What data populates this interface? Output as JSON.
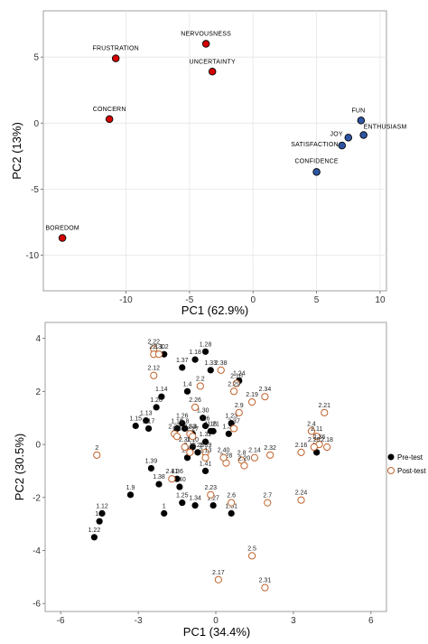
{
  "colors": {
    "emotion_negative": "#d40000",
    "emotion_positive": "#2e55a3",
    "pre": "#000000",
    "post_stroke": "#c0622a",
    "panel_border": "#888888",
    "grid": "#e6e6e6"
  },
  "chart_data": [
    {
      "type": "scatter",
      "xlabel": "PC1 (62.9%)",
      "ylabel": "PC2 (13%)",
      "xlim": [
        -16.5,
        10.5
      ],
      "ylim": [
        -12.7,
        8.5
      ],
      "xticks": [
        -10,
        -5,
        0,
        5,
        10
      ],
      "yticks": [
        -10,
        -5,
        0,
        5
      ],
      "grid": true,
      "points": [
        {
          "label": "NERVOUSNESS",
          "x": -3.7,
          "y": 6.0,
          "group": "negative"
        },
        {
          "label": "FRUSTRATION",
          "x": -10.8,
          "y": 4.9,
          "group": "negative"
        },
        {
          "label": "UNCERTAINTY",
          "x": -3.2,
          "y": 3.9,
          "group": "negative"
        },
        {
          "label": "CONCERN",
          "x": -11.3,
          "y": 0.3,
          "group": "negative"
        },
        {
          "label": "BOREDOM",
          "x": -15.0,
          "y": -8.7,
          "group": "negative"
        },
        {
          "label": "FUN",
          "x": 8.5,
          "y": 0.2,
          "group": "positive"
        },
        {
          "label": "ENTHUSIASM",
          "x": 8.7,
          "y": -0.9,
          "group": "positive"
        },
        {
          "label": "JOY",
          "x": 7.5,
          "y": -1.1,
          "group": "positive"
        },
        {
          "label": "SATISFACTION",
          "x": 7.0,
          "y": -1.7,
          "group": "positive"
        },
        {
          "label": "CONFIDENCE",
          "x": 5.0,
          "y": -3.7,
          "group": "positive"
        }
      ]
    },
    {
      "type": "scatter",
      "xlabel": "PC1 (34.4%)",
      "ylabel": "PC2 (30.5%)",
      "xlim": [
        -6.6,
        6.6
      ],
      "ylim": [
        -6.3,
        4.6
      ],
      "xticks": [
        -6,
        -3,
        0,
        3,
        6
      ],
      "yticks": [
        -6,
        -4,
        -2,
        0,
        2,
        4
      ],
      "grid": false,
      "legend": {
        "position": "right",
        "entries": [
          "Pre-test",
          "Post-test"
        ]
      },
      "series": [
        {
          "name": "Pre-test",
          "points": [
            {
              "label": "1.2",
              "x": -2.0,
              "y": 3.4
            },
            {
              "label": "1.28",
              "x": -0.4,
              "y": 3.5
            },
            {
              "label": "1.18",
              "x": -0.8,
              "y": 3.2
            },
            {
              "label": "1.37",
              "x": -1.3,
              "y": 2.9
            },
            {
              "label": "1.33",
              "x": -0.2,
              "y": 2.8
            },
            {
              "label": "1.24",
              "x": 0.9,
              "y": 2.4
            },
            {
              "label": "1.4",
              "x": -1.1,
              "y": 2.0
            },
            {
              "label": "1.14",
              "x": -2.1,
              "y": 1.8
            },
            {
              "label": "1.20",
              "x": -2.3,
              "y": 1.4
            },
            {
              "label": "1.15",
              "x": -3.1,
              "y": 0.7
            },
            {
              "label": "1.13",
              "x": -2.7,
              "y": 0.9
            },
            {
              "label": "1.17",
              "x": -2.6,
              "y": 0.6
            },
            {
              "label": "1.26",
              "x": -1.3,
              "y": 0.8
            },
            {
              "label": "1.19",
              "x": -1.5,
              "y": 0.6
            },
            {
              "label": "1.8",
              "x": -1.2,
              "y": 0.6
            },
            {
              "label": "1.3",
              "x": -0.9,
              "y": 0.4
            },
            {
              "label": "1.30",
              "x": -0.5,
              "y": 1.0
            },
            {
              "label": "1.6",
              "x": -0.4,
              "y": 0.7
            },
            {
              "label": "1.16",
              "x": -0.2,
              "y": 0.5
            },
            {
              "label": "1.32",
              "x": -0.4,
              "y": 0.1
            },
            {
              "label": "1.10",
              "x": -0.9,
              "y": -0.1
            },
            {
              "label": "1.29",
              "x": -0.7,
              "y": -0.3
            },
            {
              "label": "1.23",
              "x": 0.6,
              "y": 0.8
            },
            {
              "label": "1.35",
              "x": 0.5,
              "y": 0.4
            },
            {
              "label": "1.21",
              "x": -0.1,
              "y": 0.5
            },
            {
              "label": "1.11",
              "x": -1.1,
              "y": -0.5
            },
            {
              "label": "1.41",
              "x": -0.4,
              "y": -1.0
            },
            {
              "label": "1.39",
              "x": -2.5,
              "y": -0.9
            },
            {
              "label": "1.38",
              "x": -2.2,
              "y": -1.5
            },
            {
              "label": "1.36",
              "x": -1.5,
              "y": -1.3
            },
            {
              "label": "1.40",
              "x": -1.4,
              "y": -1.6
            },
            {
              "label": "1.9",
              "x": -3.3,
              "y": -1.9
            },
            {
              "label": "1.25",
              "x": -1.3,
              "y": -2.2
            },
            {
              "label": "1.34",
              "x": -0.8,
              "y": -2.3
            },
            {
              "label": "1.27",
              "x": -0.1,
              "y": -2.3
            },
            {
              "label": "1",
              "x": -2.0,
              "y": -2.6
            },
            {
              "label": "1.31",
              "x": 0.6,
              "y": -2.6
            },
            {
              "label": "1.12",
              "x": -4.4,
              "y": -2.6
            },
            {
              "label": "1.7",
              "x": -4.5,
              "y": -2.9
            },
            {
              "label": "1.22",
              "x": -4.7,
              "y": -3.5
            },
            {
              "label": "1.5",
              "x": 3.9,
              "y": -0.3
            }
          ]
        },
        {
          "name": "Post-test",
          "points": [
            {
              "label": "2.22",
              "x": -2.4,
              "y": 3.6
            },
            {
              "label": "2.1",
              "x": -2.4,
              "y": 3.4
            },
            {
              "label": "2.30",
              "x": -2.2,
              "y": 3.4
            },
            {
              "label": "2.12",
              "x": -2.4,
              "y": 2.6
            },
            {
              "label": "2.38",
              "x": 0.2,
              "y": 2.8
            },
            {
              "label": "2.10",
              "x": 0.8,
              "y": 2.3
            },
            {
              "label": "2.29",
              "x": 0.7,
              "y": 2.0
            },
            {
              "label": "2.2",
              "x": -0.6,
              "y": 2.2
            },
            {
              "label": "2.34",
              "x": 1.9,
              "y": 1.8
            },
            {
              "label": "2.19",
              "x": 1.4,
              "y": 1.6
            },
            {
              "label": "2.9",
              "x": 0.9,
              "y": 1.2
            },
            {
              "label": "2.26",
              "x": -0.8,
              "y": 1.4
            },
            {
              "label": "2.21",
              "x": 4.2,
              "y": 1.2
            },
            {
              "label": "2.4",
              "x": 3.7,
              "y": 0.5
            },
            {
              "label": "2.11",
              "x": 3.9,
              "y": 0.3
            },
            {
              "label": "2.18",
              "x": 4.3,
              "y": -0.1
            },
            {
              "label": "2.36",
              "x": 4.0,
              "y": 0.0
            },
            {
              "label": "2.25",
              "x": 3.8,
              "y": -0.1
            },
            {
              "label": "2.33",
              "x": -1.0,
              "y": 0.4
            },
            {
              "label": "2.35",
              "x": -1.6,
              "y": 0.4
            },
            {
              "label": "2.27",
              "x": -0.9,
              "y": 0.3
            },
            {
              "label": "2.3",
              "x": -1.5,
              "y": 0.3
            },
            {
              "label": "2.37",
              "x": 0.7,
              "y": 0.6
            },
            {
              "label": "2.16",
              "x": 3.3,
              "y": -0.3
            },
            {
              "label": "2.32",
              "x": 2.1,
              "y": -0.4
            },
            {
              "label": "2.14",
              "x": 1.5,
              "y": -0.5
            },
            {
              "label": "2.8",
              "x": 1.0,
              "y": -0.6
            },
            {
              "label": "2.20",
              "x": 1.1,
              "y": -0.8
            },
            {
              "label": "2.28",
              "x": 0.4,
              "y": -0.7
            },
            {
              "label": "2.40",
              "x": 0.3,
              "y": -0.5
            },
            {
              "label": "2.15",
              "x": -1.0,
              "y": -0.3
            },
            {
              "label": "2.39",
              "x": -0.4,
              "y": -0.3
            },
            {
              "label": "2.13",
              "x": -0.4,
              "y": -0.5
            },
            {
              "label": "2.31x",
              "x": -1.2,
              "y": -0.1
            },
            {
              "label": "2",
              "x": -4.6,
              "y": -0.4
            },
            {
              "label": "2.41",
              "x": -1.7,
              "y": -1.3
            },
            {
              "label": "2.23",
              "x": -0.2,
              "y": -1.9
            },
            {
              "label": "2.6",
              "x": 0.6,
              "y": -2.2
            },
            {
              "label": "2.7",
              "x": 2.0,
              "y": -2.2
            },
            {
              "label": "2.24",
              "x": 3.3,
              "y": -2.1
            },
            {
              "label": "2.5",
              "x": 1.4,
              "y": -4.2
            },
            {
              "label": "2.17",
              "x": 0.1,
              "y": -5.1
            },
            {
              "label": "2.31",
              "x": 1.9,
              "y": -5.4
            }
          ]
        }
      ]
    }
  ]
}
